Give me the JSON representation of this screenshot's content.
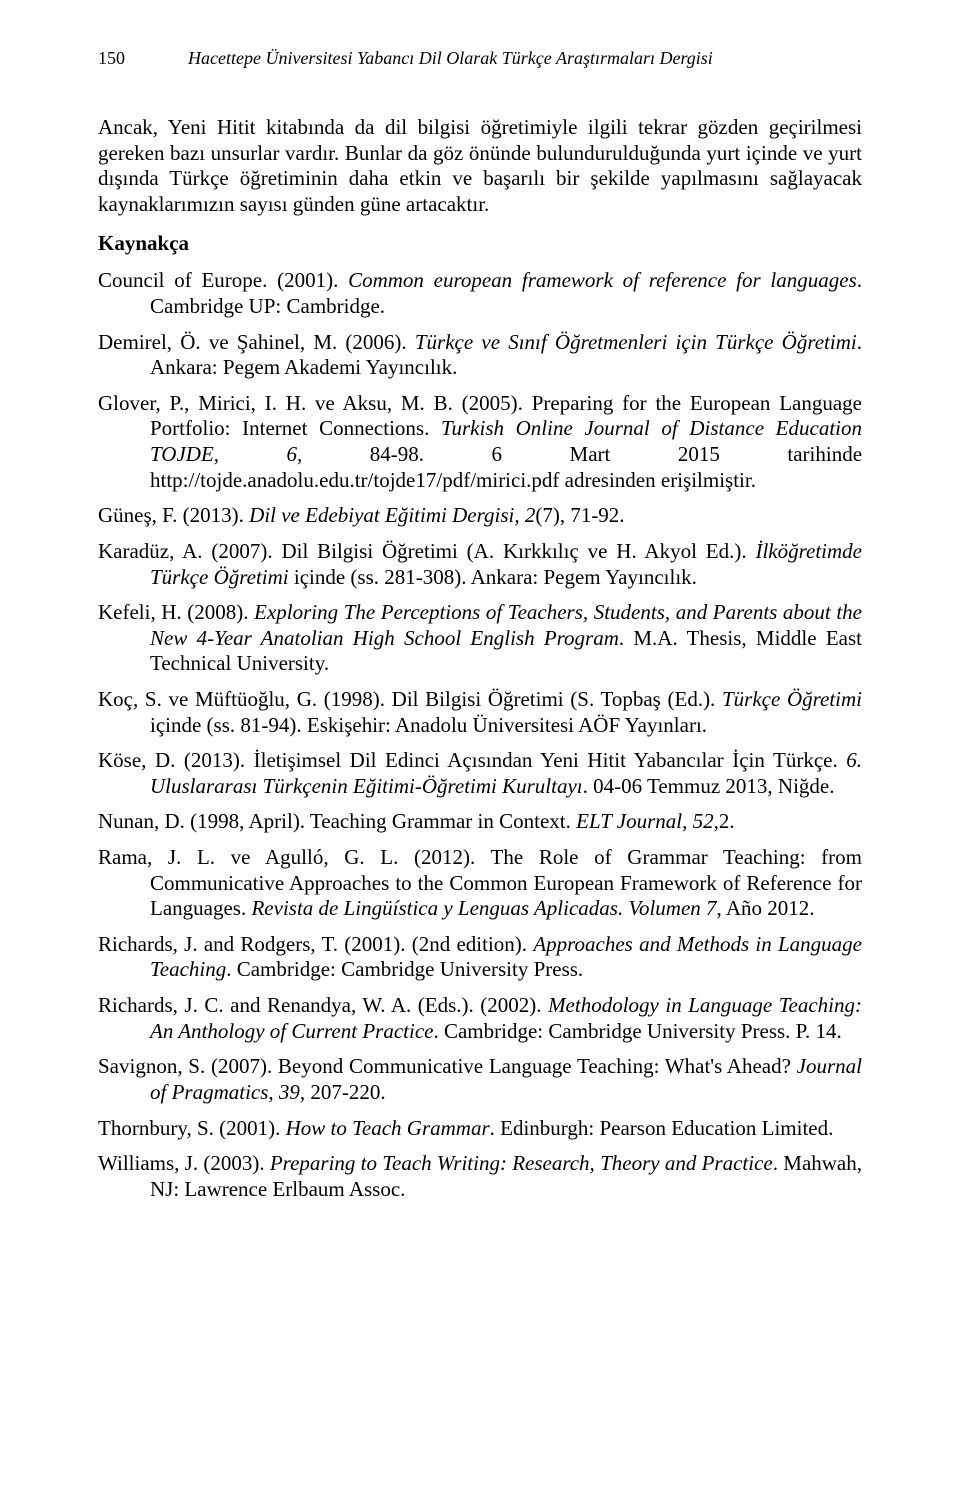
{
  "header": {
    "page_number": "150",
    "journal_title": "Hacettepe Üniversitesi Yabancı Dil Olarak Türkçe Araştırmaları Dergisi"
  },
  "body": {
    "p1": "Ancak, Yeni Hitit kitabında da dil bilgisi öğretimiyle ilgili tekrar gözden geçirilmesi gereken bazı unsurlar vardır. Bunlar da göz önünde bulundurulduğunda yurt içinde ve yurt dışında Türkçe öğretiminin daha etkin ve başarılı bir şekilde yapılmasını sağlayacak kaynaklarımızın sayısı günden güne artacaktır."
  },
  "kaynakca_heading": "Kaynakça",
  "refs": {
    "r1a": "Council of Europe. (2001). ",
    "r1b": "Common european framework of reference for languages",
    "r1c": ". Cambridge UP: Cambridge.",
    "r2a": "Demirel, Ö. ve Şahinel, M. (2006). ",
    "r2b": "Türkçe ve Sınıf Öğretmenleri için Türkçe Öğretimi",
    "r2c": ". Ankara: Pegem Akademi Yayıncılık.",
    "r3a": "Glover, P., Mirici, I. H. ve Aksu, M. B. (2005). Preparing for the European Language Portfolio: Internet Connections. ",
    "r3b": "Turkish Online Journal of Distance Education TOJDE, 6,",
    "r3c": " 84-98. 6 Mart 2015 tarihinde http://tojde.anadolu.edu.tr/tojde17/pdf/mirici.pdf adresinden erişilmiştir.",
    "r4a": "Güneş, F. (2013). ",
    "r4b": "Dil ve Edebiyat Eğitimi Dergisi, 2",
    "r4c": "(7), 71-92.",
    "r5a": "Karadüz, A. (2007). Dil Bilgisi Öğretimi (A. Kırkkılıç ve H. Akyol Ed.). ",
    "r5b": "İlköğretimde Türkçe Öğretimi ",
    "r5c": "içinde (ss. 281-308). Ankara: Pegem Yayıncılık.",
    "r6a": "Kefeli, H. (2008). ",
    "r6b": "Exploring The Perceptions of Teachers, Students, and Parents about the New 4-Year Anatolian High School English Program",
    "r6c": ". M.A. Thesis, Middle East Technical University.",
    "r7a": "Koç, S. ve Müftüoğlu, G. (1998). Dil Bilgisi Öğretimi (S. Topbaş (Ed.). ",
    "r7b": "Türkçe Öğretimi ",
    "r7c": "içinde (ss. 81-94). Eskişehir: Anadolu Üniversitesi AÖF Yayınları.",
    "r8a": "Köse, D. (2013). İletişimsel Dil Edinci Açısından Yeni Hitit Yabancılar İçin Türkçe. ",
    "r8b": "6. Uluslararası Türkçenin Eğitimi-Öğretimi Kurultayı",
    "r8c": ". 04-06 Temmuz 2013, Niğde.",
    "r9a": "Nunan, D. (1998, April). Teaching Grammar in Context. ",
    "r9b": "ELT Journal, 52,",
    "r9c": "2.",
    "r10a": "Rama, J. L. ve Agulló, G. L. (2012). The Role of Grammar Teaching: from Communicative Approaches to the Common European Framework of Reference for Languages. ",
    "r10b": "Revista de Lingüística y Lenguas Aplicadas. Volumen 7",
    "r10c": ", Año 2012.",
    "r11a": "Richards, J. and Rodgers, T. (2001). (2nd edition). ",
    "r11b": "Approaches and Methods in Language Teaching",
    "r11c": ". Cambridge: Cambridge University Press.",
    "r12a": "Richards, J. C. and Renandya, W. A. (Eds.). (2002). ",
    "r12b": "Methodology in Language Teaching: An Anthology of Current Practice",
    "r12c": ". Cambridge: Cambridge University Press. P. 14.",
    "r13a": "Savignon, S. (2007). Beyond Communicative Language Teaching: What's Ahead? ",
    "r13b": "Journal of Pragmatics",
    "r13c": ", ",
    "r13d": "39",
    "r13e": ", 207-220.",
    "r14a": "Thornbury, S. (2001). ",
    "r14b": "How to Teach Grammar",
    "r14c": ". Edinburgh: Pearson Education Limited.",
    "r15a": "Williams, J. (2003). ",
    "r15b": "Preparing to Teach Writing: Research, Theory and Practice",
    "r15c": ". Mahwah, NJ: Lawrence Erlbaum Assoc."
  }
}
